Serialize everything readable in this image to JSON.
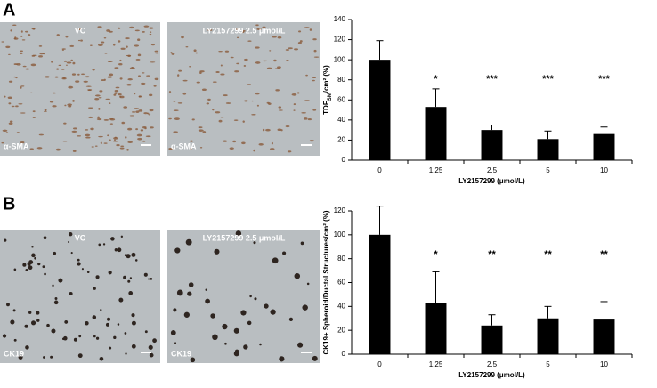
{
  "panels": [
    {
      "letter": "A",
      "images": [
        {
          "label": "VC",
          "stain": "α-SMA"
        },
        {
          "label": "LY2157299 2.5 μmol/L",
          "stain": "α-SMA"
        }
      ]
    },
    {
      "letter": "B",
      "images": [
        {
          "label": "VC",
          "stain": "CK19"
        },
        {
          "label": "LY2157299 2.5 μmol/L",
          "stain": "CK19"
        }
      ]
    }
  ],
  "chart_data": [
    {
      "type": "bar",
      "ylabel": [
        "TDF",
        "SM",
        "/cm² (%)"
      ],
      "xlabel": "LY2157299  (μmol/L)",
      "categories": [
        "0",
        "1.25",
        "2.5",
        "5",
        "10"
      ],
      "values": [
        100,
        53,
        30,
        21,
        26
      ],
      "errors": [
        19,
        18,
        5,
        8,
        7
      ],
      "annotations": [
        null,
        "*",
        "***",
        "***",
        "***"
      ],
      "color": "#000000",
      "ylim": [
        0,
        140
      ],
      "yticks": [
        0,
        20,
        40,
        60,
        80,
        100,
        120,
        140
      ]
    },
    {
      "type": "bar",
      "ylabel": [
        "CK19+ Spheroid/Ductal Structures/cm² (%)"
      ],
      "xlabel": "LY2157299  (μmol/L)",
      "categories": [
        "0",
        "1.25",
        "2.5",
        "5",
        "10"
      ],
      "values": [
        100,
        43,
        24,
        30,
        29
      ],
      "errors": [
        24,
        26,
        9,
        10,
        15
      ],
      "annotations": [
        null,
        "*",
        "**",
        "**",
        "**"
      ],
      "color": "#000000",
      "ylim": [
        0,
        120
      ],
      "yticks": [
        0,
        20,
        40,
        60,
        80,
        100,
        120
      ]
    }
  ]
}
